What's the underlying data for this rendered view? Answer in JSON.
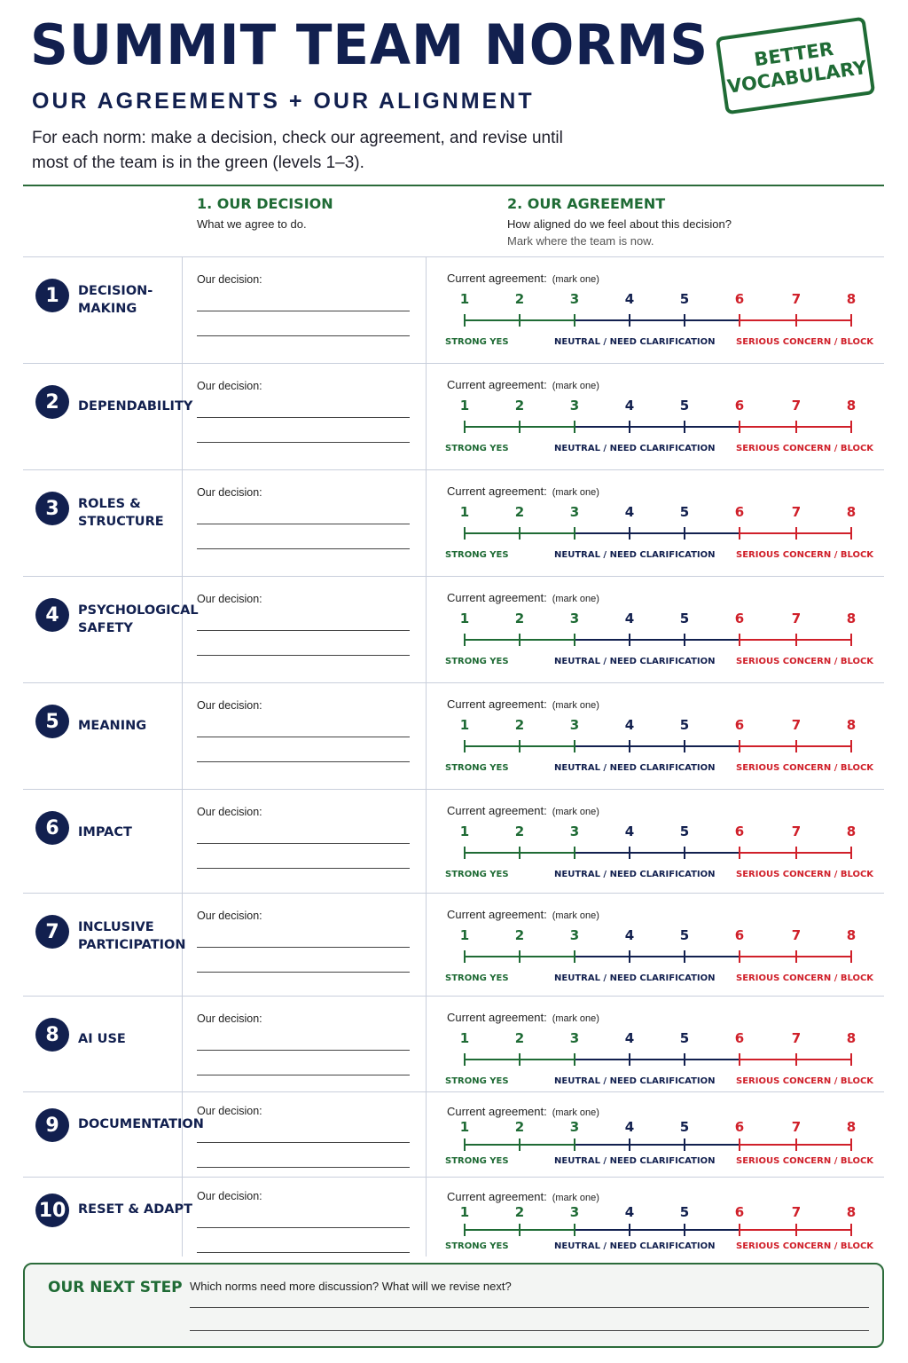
{
  "header": {
    "title": "SUMMIT TEAM NORMS",
    "subtitle": "OUR AGREEMENTS + OUR ALIGNMENT",
    "intro": "For each norm: make a decision, check our agreement, and revise until most of the team is in the green (levels 1–3).",
    "stamp_line1": "BETTER",
    "stamp_line2": "VOCABULARY"
  },
  "columns": {
    "decision_heading": "1. OUR DECISION",
    "decision_sub": "What we agree to do.",
    "agreement_heading": "2. OUR AGREEMENT",
    "agreement_sub": "How aligned do we feel about this decision?",
    "agreement_sub2": "Mark where the team is now."
  },
  "row_labels": {
    "decision": "Our decision:",
    "current": "Current agreement:",
    "mark": "(mark one)"
  },
  "scale": {
    "levels": [
      "1",
      "2",
      "3",
      "4",
      "5",
      "6",
      "7",
      "8"
    ],
    "label_yes": "STRONG YES",
    "label_neutral": "NEUTRAL / NEED CLARIFICATION",
    "label_concern": "SERIOUS CONCERN / BLOCK",
    "colors": {
      "green": "#1f6b35",
      "blue": "#12204f",
      "red": "#d0202a"
    }
  },
  "norms": [
    {
      "number": "1",
      "name": "DECISION-\nMAKING"
    },
    {
      "number": "2",
      "name": "DEPENDABILITY"
    },
    {
      "number": "3",
      "name": "ROLES &\nSTRUCTURE"
    },
    {
      "number": "4",
      "name": "PSYCHOLOGICAL\nSAFETY"
    },
    {
      "number": "5",
      "name": "MEANING"
    },
    {
      "number": "6",
      "name": "IMPACT"
    },
    {
      "number": "7",
      "name": "INCLUSIVE\nPARTICIPATION"
    },
    {
      "number": "8",
      "name": "AI USE"
    },
    {
      "number": "9",
      "name": "DOCUMENTATION"
    },
    {
      "number": "10",
      "name": "RESET & ADAPT"
    }
  ],
  "next_step": {
    "heading": "OUR NEXT STEP",
    "question": "Which norms need more discussion? What will we revise next?"
  }
}
